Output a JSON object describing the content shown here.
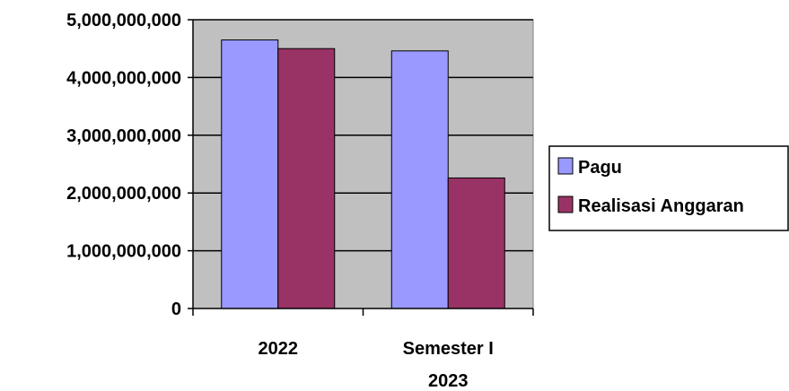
{
  "chart_data": {
    "type": "bar",
    "categories": [
      "2022",
      "Semester I 2023"
    ],
    "category_lines": [
      [
        "2022"
      ],
      [
        "Semester I",
        "2023"
      ]
    ],
    "series": [
      {
        "name": "Pagu",
        "values": [
          4650000000,
          4460000000
        ],
        "color": "#9999ff"
      },
      {
        "name": "Realisasi Anggaran",
        "values": [
          4500000000,
          2260000000
        ],
        "color": "#993366"
      }
    ],
    "yticks": [
      "0",
      "1,000,000,000",
      "2,000,000,000",
      "3,000,000,000",
      "4,000,000,000",
      "5,000,000,000"
    ],
    "ylim": [
      0,
      5000000000
    ],
    "title": "",
    "xlabel": "",
    "ylabel": "",
    "grid": true,
    "legend_position": "right",
    "plot_background": "#c0c0c0"
  }
}
